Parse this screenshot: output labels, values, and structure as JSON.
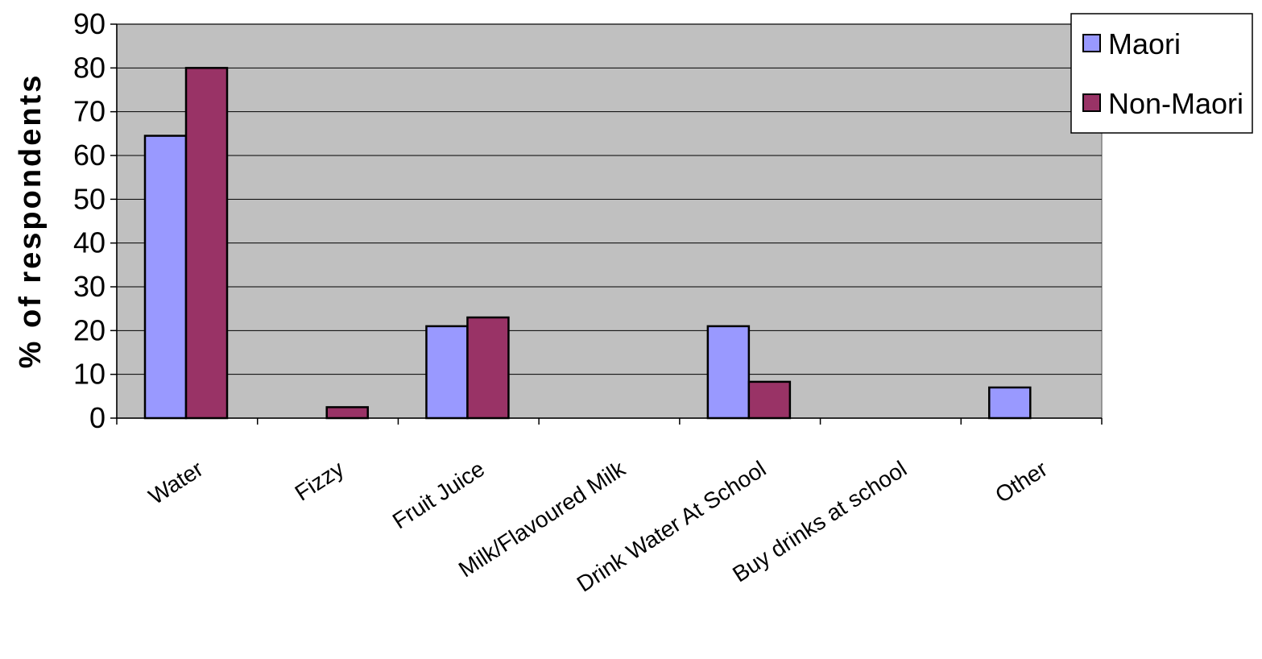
{
  "chart_data": {
    "type": "bar",
    "title": "",
    "xlabel": "",
    "ylabel": "% of respondents",
    "ylim": [
      0,
      90
    ],
    "yticks": [
      0,
      10,
      20,
      30,
      40,
      50,
      60,
      70,
      80,
      90
    ],
    "grid": true,
    "legend": "top-right",
    "categories": [
      "Water",
      "Fizzy",
      "Fruit Juice",
      "Milk/Flavoured Milk",
      "Drink Water At School",
      "Buy drinks at school",
      "Other"
    ],
    "series": [
      {
        "name": "Maori",
        "color": "#9999ff",
        "values": [
          64.5,
          0,
          21,
          0,
          21,
          0,
          7
        ]
      },
      {
        "name": "Non-Maori",
        "color": "#993366",
        "values": [
          80,
          2.5,
          23,
          0,
          8.3,
          0,
          0
        ]
      }
    ],
    "plot_background": "#c0c0c0"
  }
}
